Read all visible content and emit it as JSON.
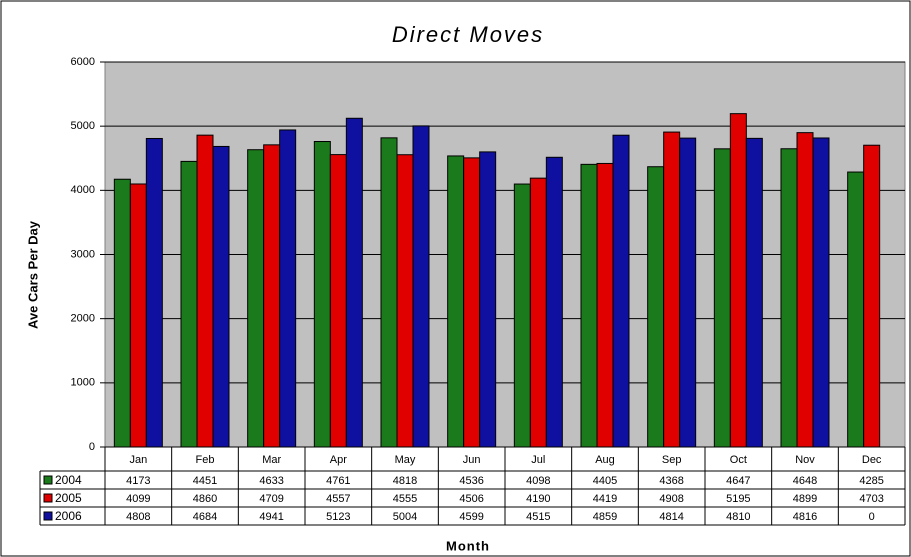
{
  "chart_data": {
    "type": "bar",
    "title": "Direct Moves",
    "x_label": "Month",
    "y_label": "Ave Cars Per Day",
    "categories": [
      "Jan",
      "Feb",
      "Mar",
      "Apr",
      "May",
      "Jun",
      "Jul",
      "Aug",
      "Sep",
      "Oct",
      "Nov",
      "Dec"
    ],
    "series": [
      {
        "name": "2004",
        "color": "#1b7a1b",
        "values": [
          4173,
          4451,
          4633,
          4761,
          4818,
          4536,
          4098,
          4405,
          4368,
          4647,
          4648,
          4285
        ]
      },
      {
        "name": "2005",
        "color": "#e00000",
        "values": [
          4099,
          4860,
          4709,
          4557,
          4555,
          4506,
          4190,
          4419,
          4908,
          5195,
          4899,
          4703
        ]
      },
      {
        "name": "2006",
        "color": "#1010a0",
        "values": [
          4808,
          4684,
          4941,
          5123,
          5004,
          4599,
          4515,
          4859,
          4814,
          4810,
          4816,
          0
        ]
      }
    ],
    "ylim": [
      0,
      6000
    ],
    "yticks": [
      0,
      1000,
      2000,
      3000,
      4000,
      5000,
      6000
    ],
    "grid": true
  }
}
